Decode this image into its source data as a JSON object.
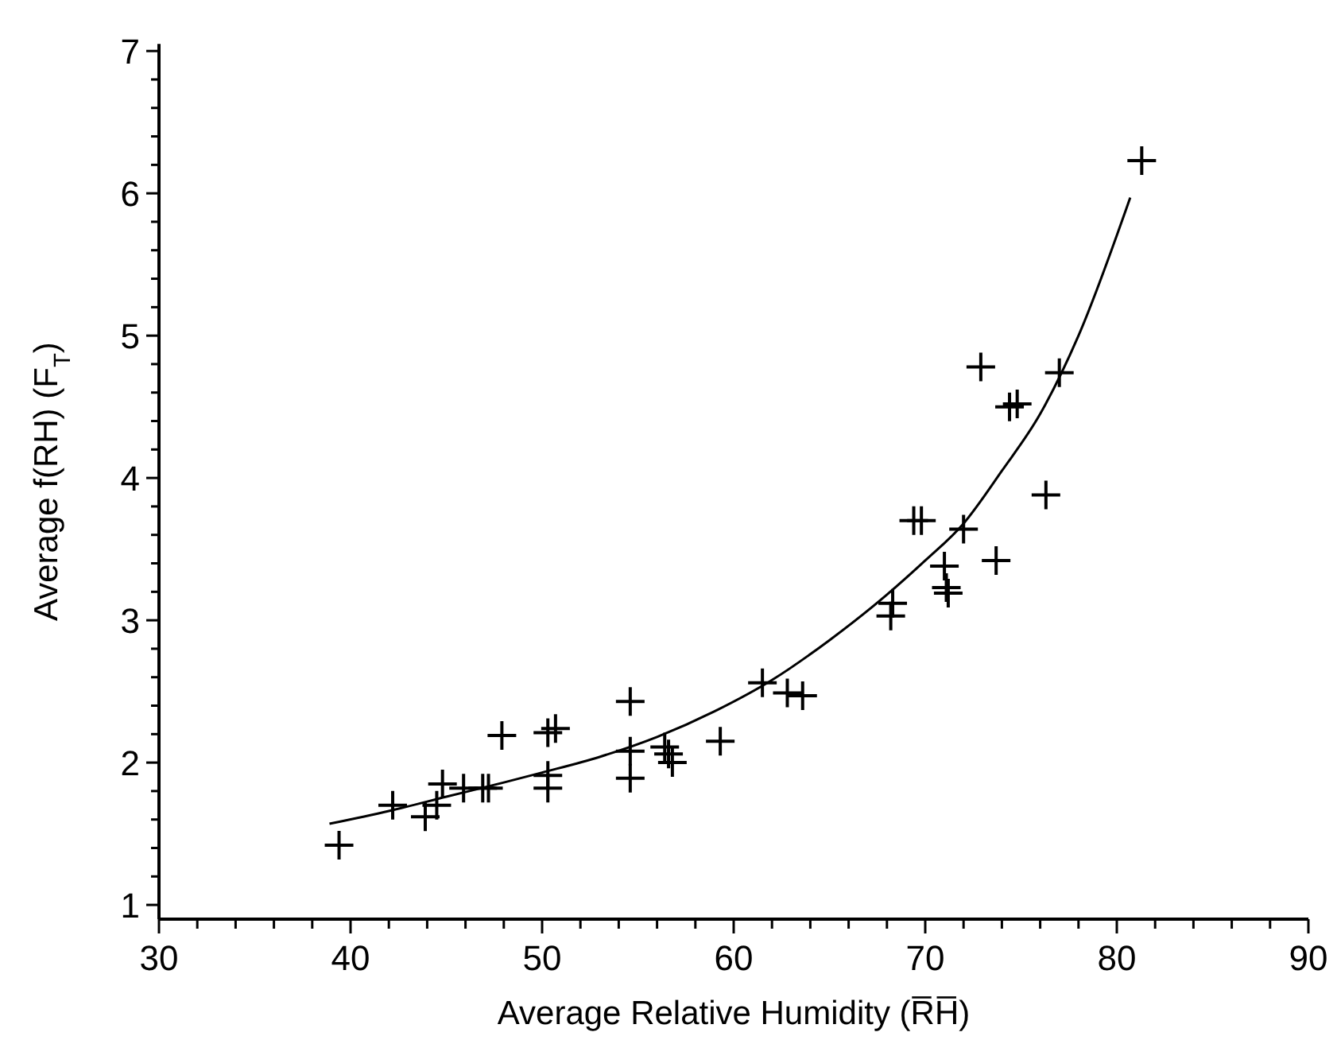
{
  "chart_data": {
    "type": "scatter",
    "xlabel": "Average Relative Humidity (R̅H̅)",
    "ylabel": "Average f(RH) (F$_{T}$)",
    "xlim": [
      30,
      90
    ],
    "ylim": [
      0.9,
      7.05
    ],
    "grid": false,
    "xticks": [
      30,
      {
        "value": 32,
        "label": null
      },
      {
        "value": 34,
        "label": null
      },
      {
        "value": 36,
        "label": null
      },
      {
        "value": 38,
        "label": null
      },
      40,
      {
        "value": 42,
        "label": null
      },
      {
        "value": 44,
        "label": null
      },
      {
        "value": 46,
        "label": null
      },
      {
        "value": 48,
        "label": null
      },
      50,
      {
        "value": 52,
        "label": null
      },
      {
        "value": 54,
        "label": null
      },
      {
        "value": 56,
        "label": null
      },
      {
        "value": 58,
        "label": null
      },
      60,
      {
        "value": 62,
        "label": null
      },
      {
        "value": 64,
        "label": null
      },
      {
        "value": 66,
        "label": null
      },
      {
        "value": 68,
        "label": null
      },
      70,
      {
        "value": 72,
        "label": null
      },
      {
        "value": 74,
        "label": null
      },
      {
        "value": 76,
        "label": null
      },
      {
        "value": 78,
        "label": null
      },
      80,
      {
        "value": 82,
        "label": null
      },
      {
        "value": 84,
        "label": null
      },
      {
        "value": 86,
        "label": null
      },
      {
        "value": 88,
        "label": null
      },
      90
    ],
    "yticks": [
      1,
      {
        "value": 1.2,
        "label": null
      },
      {
        "value": 1.4,
        "label": null
      },
      {
        "value": 1.6,
        "label": null
      },
      {
        "value": 1.8,
        "label": null
      },
      2,
      {
        "value": 2.2,
        "label": null
      },
      {
        "value": 2.4,
        "label": null
      },
      {
        "value": 2.6,
        "label": null
      },
      {
        "value": 2.8,
        "label": null
      },
      3,
      {
        "value": 3.2,
        "label": null
      },
      {
        "value": 3.4,
        "label": null
      },
      {
        "value": 3.6,
        "label": null
      },
      {
        "value": 3.8,
        "label": null
      },
      4,
      {
        "value": 4.2,
        "label": null
      },
      {
        "value": 4.4,
        "label": null
      },
      {
        "value": 4.6,
        "label": null
      },
      {
        "value": 4.8,
        "label": null
      },
      5,
      {
        "value": 5.2,
        "label": null
      },
      {
        "value": 5.4,
        "label": null
      },
      {
        "value": 5.6,
        "label": null
      },
      {
        "value": 5.8,
        "label": null
      },
      6,
      {
        "value": 6.2,
        "label": null
      },
      {
        "value": 6.4,
        "label": null
      },
      {
        "value": 6.6,
        "label": null
      },
      {
        "value": 6.8,
        "label": null
      },
      7
    ],
    "series": [
      {
        "color": "#000000",
        "marker": "cross",
        "x": [
          39.4,
          42.2,
          43.9,
          44.5,
          44.8,
          45.9,
          46.9,
          47.2,
          47.9,
          50.3,
          50.3,
          50.3,
          50.7,
          54.6,
          54.6,
          54.6,
          56.4,
          56.6,
          56.8,
          59.3,
          61.5,
          62.8,
          63.6,
          68.2,
          68.3,
          69.4,
          69.8,
          71.0,
          71.1,
          71.2,
          72.0,
          73.7,
          72.9,
          74.4,
          74.8,
          76.3,
          77.0,
          81.3
        ],
        "values": [
          1.42,
          1.7,
          1.62,
          1.7,
          1.85,
          1.82,
          1.82,
          1.82,
          2.19,
          1.91,
          1.82,
          2.21,
          2.24,
          2.43,
          2.08,
          1.89,
          2.11,
          2.06,
          2.0,
          2.15,
          2.56,
          2.49,
          2.47,
          3.03,
          3.12,
          3.7,
          3.7,
          3.38,
          3.23,
          3.19,
          3.64,
          3.42,
          4.78,
          4.5,
          4.52,
          3.88,
          4.74,
          6.23
        ]
      },
      {
        "type": "line",
        "color": "#000000",
        "line_style": "solid",
        "marker": "none",
        "x": [
          38.9,
          42,
          45,
          48,
          50,
          53,
          56,
          59,
          62,
          65,
          68,
          70,
          72,
          74,
          76,
          78,
          80.7
        ],
        "values": [
          1.57,
          1.66,
          1.76,
          1.86,
          1.93,
          2.04,
          2.18,
          2.36,
          2.58,
          2.86,
          3.18,
          3.42,
          3.68,
          4.05,
          4.45,
          5.0,
          5.97
        ]
      }
    ]
  }
}
